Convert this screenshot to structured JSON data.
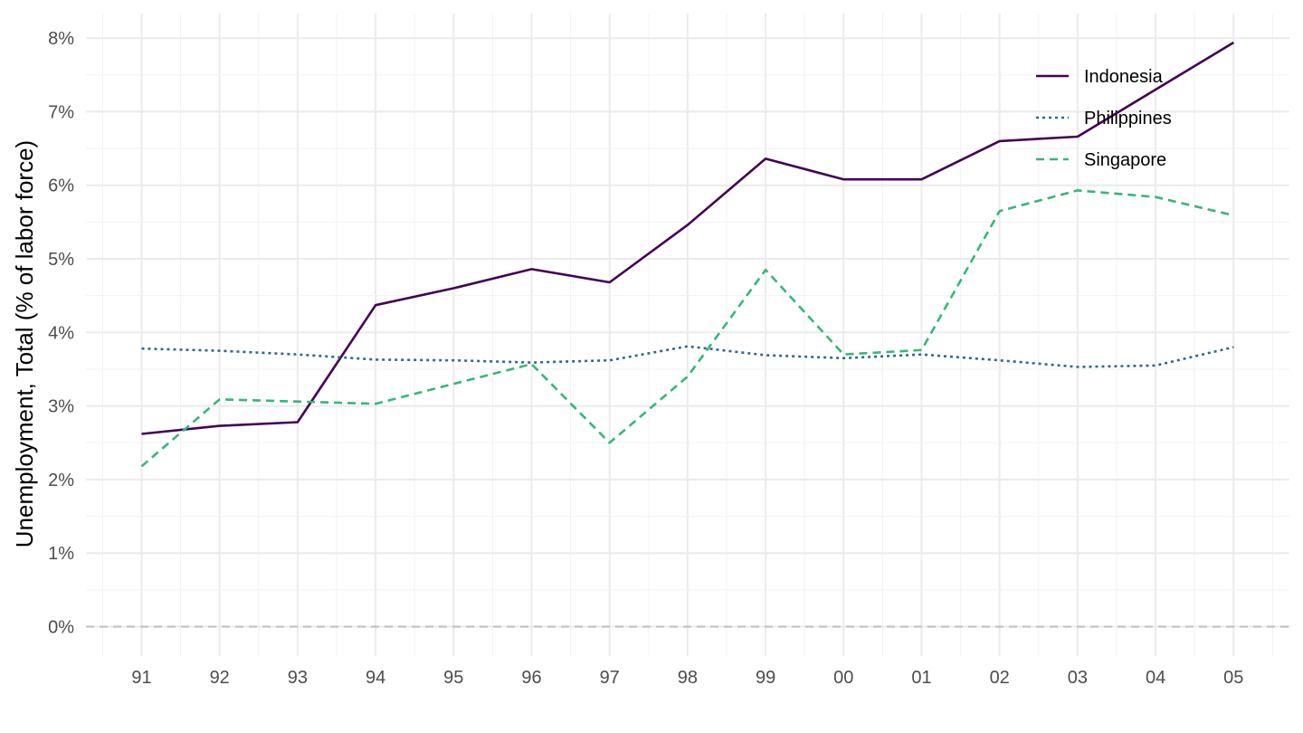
{
  "chart_data": {
    "type": "line",
    "title": "",
    "xlabel": "",
    "ylabel": "Unemployment, Total (% of labor force)",
    "categories": [
      "91",
      "92",
      "93",
      "94",
      "95",
      "96",
      "97",
      "98",
      "99",
      "00",
      "01",
      "02",
      "03",
      "04",
      "05"
    ],
    "y_ticks": [
      "0%",
      "1%",
      "2%",
      "3%",
      "4%",
      "5%",
      "6%",
      "7%",
      "8%"
    ],
    "ylim": [
      0,
      8
    ],
    "grid": true,
    "zero_line": "dashed",
    "legend_position": "top-right",
    "series": [
      {
        "name": "Indonesia",
        "color": "#440154",
        "dash": "solid",
        "values": [
          2.62,
          2.73,
          2.78,
          4.37,
          4.6,
          4.86,
          4.68,
          5.46,
          6.36,
          6.08,
          6.08,
          6.6,
          6.66,
          7.3,
          7.94
        ]
      },
      {
        "name": "Philippines",
        "color": "#31688e",
        "dash": "dotted",
        "values": [
          3.78,
          3.75,
          3.7,
          3.63,
          3.62,
          3.59,
          3.62,
          3.81,
          3.69,
          3.65,
          3.7,
          3.62,
          3.53,
          3.55,
          3.8
        ]
      },
      {
        "name": "Singapore",
        "color": "#35b779",
        "dash": "dashed",
        "values": [
          2.18,
          3.09,
          3.06,
          3.03,
          3.3,
          3.57,
          2.5,
          3.4,
          4.85,
          3.7,
          3.76,
          5.65,
          5.93,
          5.84,
          5.59
        ]
      }
    ]
  }
}
